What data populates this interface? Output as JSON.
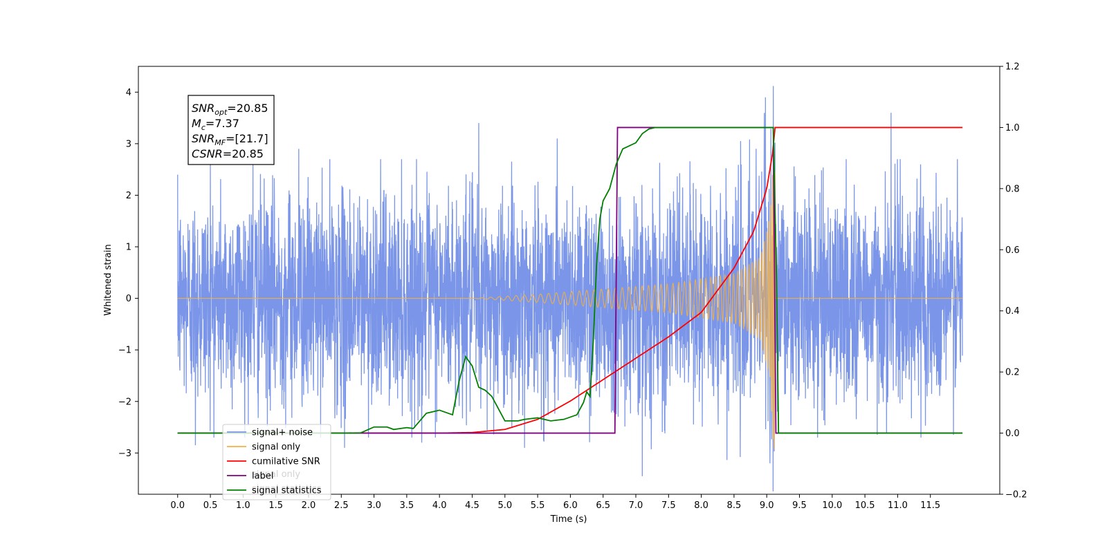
{
  "chart_data": {
    "type": "line",
    "xlabel": "Time (s)",
    "ylabel": "Whitened strain",
    "xlim": [
      -0.6,
      12.56
    ],
    "ylim": [
      -3.8,
      4.5
    ],
    "y2lim": [
      -0.2,
      1.2
    ],
    "x_ticks": [
      0.0,
      0.5,
      1.0,
      1.5,
      2.0,
      2.5,
      3.0,
      3.5,
      4.0,
      4.5,
      5.0,
      5.5,
      6.0,
      6.5,
      7.0,
      7.5,
      8.0,
      8.5,
      9.0,
      9.5,
      10.0,
      10.5,
      11.0,
      11.5
    ],
    "x_tick_labels": [
      "0.0",
      "0.5",
      "1.0",
      "1.5",
      "2.0",
      "2.5",
      "3.0",
      "3.5",
      "4.0",
      "4.5",
      "5.0",
      "5.5",
      "6.0",
      "6.5",
      "7.0",
      "7.5",
      "8.0",
      "8.5",
      "9.0",
      "9.5",
      "10.0",
      "10.5",
      "11.0",
      "11.5"
    ],
    "y_ticks": [
      -3,
      -2,
      -1,
      0,
      1,
      2,
      3,
      4
    ],
    "y_tick_labels": [
      "−3",
      "−2",
      "−1",
      "0",
      "1",
      "2",
      "3",
      "4"
    ],
    "y2_ticks": [
      -0.2,
      0.0,
      0.2,
      0.4,
      0.6,
      0.8,
      1.0,
      1.2
    ],
    "y2_tick_labels": [
      "−0.2",
      "0.0",
      "0.2",
      "0.4",
      "0.6",
      "0.8",
      "1.0",
      "1.2"
    ],
    "annotation": [
      {
        "main": "SNR",
        "sub": "opt",
        "rest": "=20.85"
      },
      {
        "main": "M",
        "sub": "c",
        "rest": "=7.37"
      },
      {
        "main": "SNR",
        "sub": "MF",
        "rest": "=[21.7]"
      },
      {
        "main": "CSNR",
        "sub": "",
        "rest": "=20.85"
      }
    ],
    "legend_position": "lower-left",
    "series": [
      {
        "name": "signal+ noise",
        "axis": "left",
        "color": "#7b96e8",
        "description": "whitened noise with injected chirp, sampled densely from 0.0 to 11.99 s",
        "x_range": [
          0.0,
          11.99
        ],
        "noise_sigma": 1.0,
        "envelope_peaks": [
          {
            "x": 0.0,
            "y": 2.4
          },
          {
            "x": 0.27,
            "y": -2.85
          },
          {
            "x": 0.5,
            "y": 2.62
          },
          {
            "x": 1.15,
            "y": 2.6
          },
          {
            "x": 1.85,
            "y": 2.9
          },
          {
            "x": 2.55,
            "y": -2.9
          },
          {
            "x": 3.73,
            "y": -2.8
          },
          {
            "x": 4.6,
            "y": 3.4
          },
          {
            "x": 5.3,
            "y": -2.9
          },
          {
            "x": 5.8,
            "y": 3.1
          },
          {
            "x": 7.1,
            "y": -3.45
          },
          {
            "x": 8.6,
            "y": 3.05
          },
          {
            "x": 8.98,
            "y": 3.9
          },
          {
            "x": 9.1,
            "y": 4.12
          },
          {
            "x": 9.05,
            "y": -3.2
          },
          {
            "x": 10.9,
            "y": 3.6
          },
          {
            "x": 11.35,
            "y": 2.6
          }
        ]
      },
      {
        "name": "signal only",
        "axis": "left",
        "color": "#f5b041",
        "description": "inspiral chirp, amplitude grows toward merger at 9.12 s then zero",
        "x_range": [
          0.0,
          11.99
        ],
        "amplitude_points": [
          [
            4.5,
            0.0
          ],
          [
            5.5,
            0.08
          ],
          [
            6.5,
            0.18
          ],
          [
            7.5,
            0.28
          ],
          [
            8.5,
            0.48
          ],
          [
            8.9,
            0.8
          ],
          [
            9.05,
            1.6
          ],
          [
            9.12,
            3.3
          ],
          [
            9.15,
            0.0
          ]
        ]
      },
      {
        "name": "cumilative SNR",
        "axis": "right",
        "color": "#ff0000",
        "x": [
          0.0,
          4.0,
          4.5,
          5.0,
          5.5,
          6.0,
          6.5,
          7.0,
          7.5,
          8.0,
          8.5,
          8.8,
          9.0,
          9.1,
          9.12,
          10.0,
          11.0,
          11.99
        ],
        "values": [
          0.0,
          0.0,
          0.002,
          0.012,
          0.045,
          0.105,
          0.175,
          0.245,
          0.315,
          0.395,
          0.54,
          0.66,
          0.8,
          0.93,
          1.0,
          1.0,
          1.0,
          1.0
        ]
      },
      {
        "name": "label",
        "axis": "right",
        "color": "#800080",
        "x": [
          0.0,
          6.68,
          6.72,
          9.1,
          9.14,
          11.99
        ],
        "values": [
          0.0,
          0.0,
          1.0,
          1.0,
          0.0,
          0.0
        ]
      },
      {
        "name": "signal statistics",
        "axis": "right",
        "color": "#008000",
        "x": [
          0.0,
          2.5,
          2.8,
          3.0,
          3.2,
          3.3,
          3.5,
          3.6,
          3.8,
          3.9,
          4.0,
          4.2,
          4.3,
          4.4,
          4.5,
          4.6,
          4.7,
          4.8,
          4.9,
          5.0,
          5.2,
          5.3,
          5.5,
          5.7,
          5.9,
          6.1,
          6.2,
          6.25,
          6.3,
          6.35,
          6.4,
          6.45,
          6.5,
          6.6,
          6.7,
          6.8,
          7.0,
          7.1,
          7.2,
          7.3,
          7.5,
          8.0,
          9.1,
          9.15,
          9.18,
          10.0,
          11.0,
          11.99
        ],
        "values": [
          0.0,
          0.0,
          0.001,
          0.02,
          0.02,
          0.012,
          0.018,
          0.015,
          0.065,
          0.07,
          0.075,
          0.06,
          0.17,
          0.25,
          0.22,
          0.15,
          0.14,
          0.12,
          0.08,
          0.04,
          0.04,
          0.045,
          0.05,
          0.04,
          0.045,
          0.06,
          0.1,
          0.135,
          0.12,
          0.3,
          0.55,
          0.7,
          0.76,
          0.8,
          0.88,
          0.93,
          0.95,
          0.98,
          0.995,
          1.0,
          1.0,
          1.0,
          1.0,
          0.5,
          0.0,
          0.0,
          0.0,
          0.0
        ]
      }
    ],
    "legend": [
      {
        "name": "signal+ noise",
        "color": "#7b96e8"
      },
      {
        "name": "signal only",
        "color": "#f5b041"
      },
      {
        "name": "cumilative SNR",
        "color": "#ff0000"
      },
      {
        "name": "label",
        "color": "#800080"
      },
      {
        "name": "signal statistics",
        "color": "#008000"
      }
    ],
    "ghost_legend_text": [
      "signal only",
      "signal statistics"
    ]
  }
}
